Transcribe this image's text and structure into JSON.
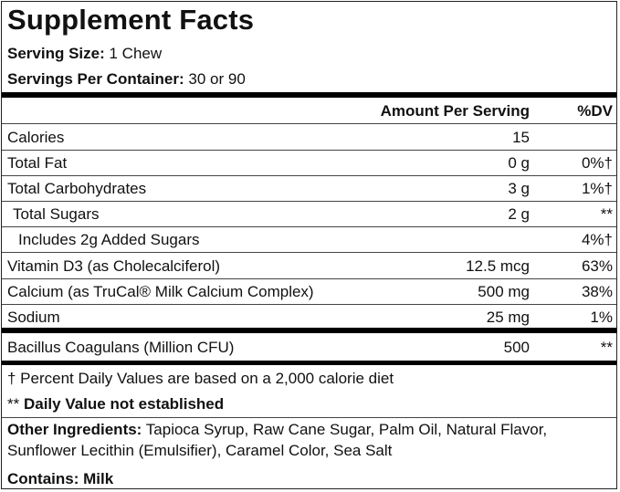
{
  "title": "Supplement Facts",
  "serving_size": {
    "label": "Serving Size:",
    "value": "1 Chew"
  },
  "servings_per_container": {
    "label": "Servings Per Container:",
    "value": "30 or 90"
  },
  "header": {
    "amount": "Amount Per Serving",
    "dv": "%DV"
  },
  "rows": [
    {
      "name": "Calories",
      "amount": "15",
      "dv": ""
    },
    {
      "name": "Total Fat",
      "amount": "0 g",
      "dv": "0%†"
    },
    {
      "name": "Total Carbohydrates",
      "amount": "3 g",
      "dv": "1%†"
    },
    {
      "name": "Total Sugars",
      "amount": "2 g",
      "dv": "**"
    },
    {
      "name": "Includes 2g Added Sugars",
      "amount": "",
      "dv": "4%†"
    },
    {
      "name": "Vitamin D3 (as Cholecalciferol)",
      "amount": "12.5 mcg",
      "dv": "63%"
    },
    {
      "name": "Calcium (as TruCal® Milk Calcium Complex)",
      "amount": "500 mg",
      "dv": "38%"
    },
    {
      "name": "Sodium",
      "amount": "25 mg",
      "dv": "1%"
    }
  ],
  "probiotic": {
    "name": "Bacillus Coagulans (Million CFU)",
    "amount": "500",
    "dv": "**"
  },
  "footnotes": {
    "dagger": "† Percent Daily Values are based on a 2,000 calorie diet",
    "stars_prefix": "**",
    "stars": "Daily Value not established"
  },
  "other_ingredients": {
    "label": "Other Ingredients:",
    "line1": "Tapioca Syrup, Raw Cane Sugar, Palm Oil, Natural Flavor,",
    "line2": "Sunflower Lecithin (Emulsifier), Caramel Color, Sea Salt"
  },
  "contains": {
    "label": "Contains:",
    "value": "Milk"
  }
}
